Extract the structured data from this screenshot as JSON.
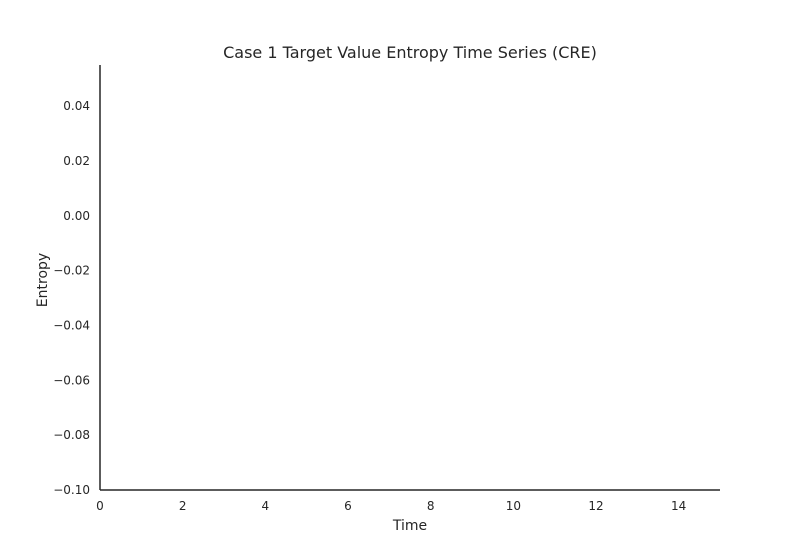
{
  "chart_data": {
    "type": "line",
    "title": "Case 1 Target Value Entropy Time Series (CRE)",
    "xlabel": "Time",
    "ylabel": "Entropy",
    "xlim": [
      0,
      15
    ],
    "ylim": [
      -0.1,
      0.055
    ],
    "x_ticks": [
      0,
      2,
      4,
      6,
      8,
      10,
      12,
      14
    ],
    "x_tick_labels": [
      "0",
      "2",
      "4",
      "6",
      "8",
      "10",
      "12",
      "14"
    ],
    "y_ticks": [
      -0.1,
      -0.08,
      -0.06,
      -0.04,
      -0.02,
      0.0,
      0.02,
      0.04
    ],
    "y_tick_labels": [
      "−0.10",
      "−0.08",
      "−0.06",
      "−0.04",
      "−0.02",
      "0.00",
      "0.02",
      "0.04"
    ],
    "series": [],
    "grid": false,
    "legend": "none"
  }
}
